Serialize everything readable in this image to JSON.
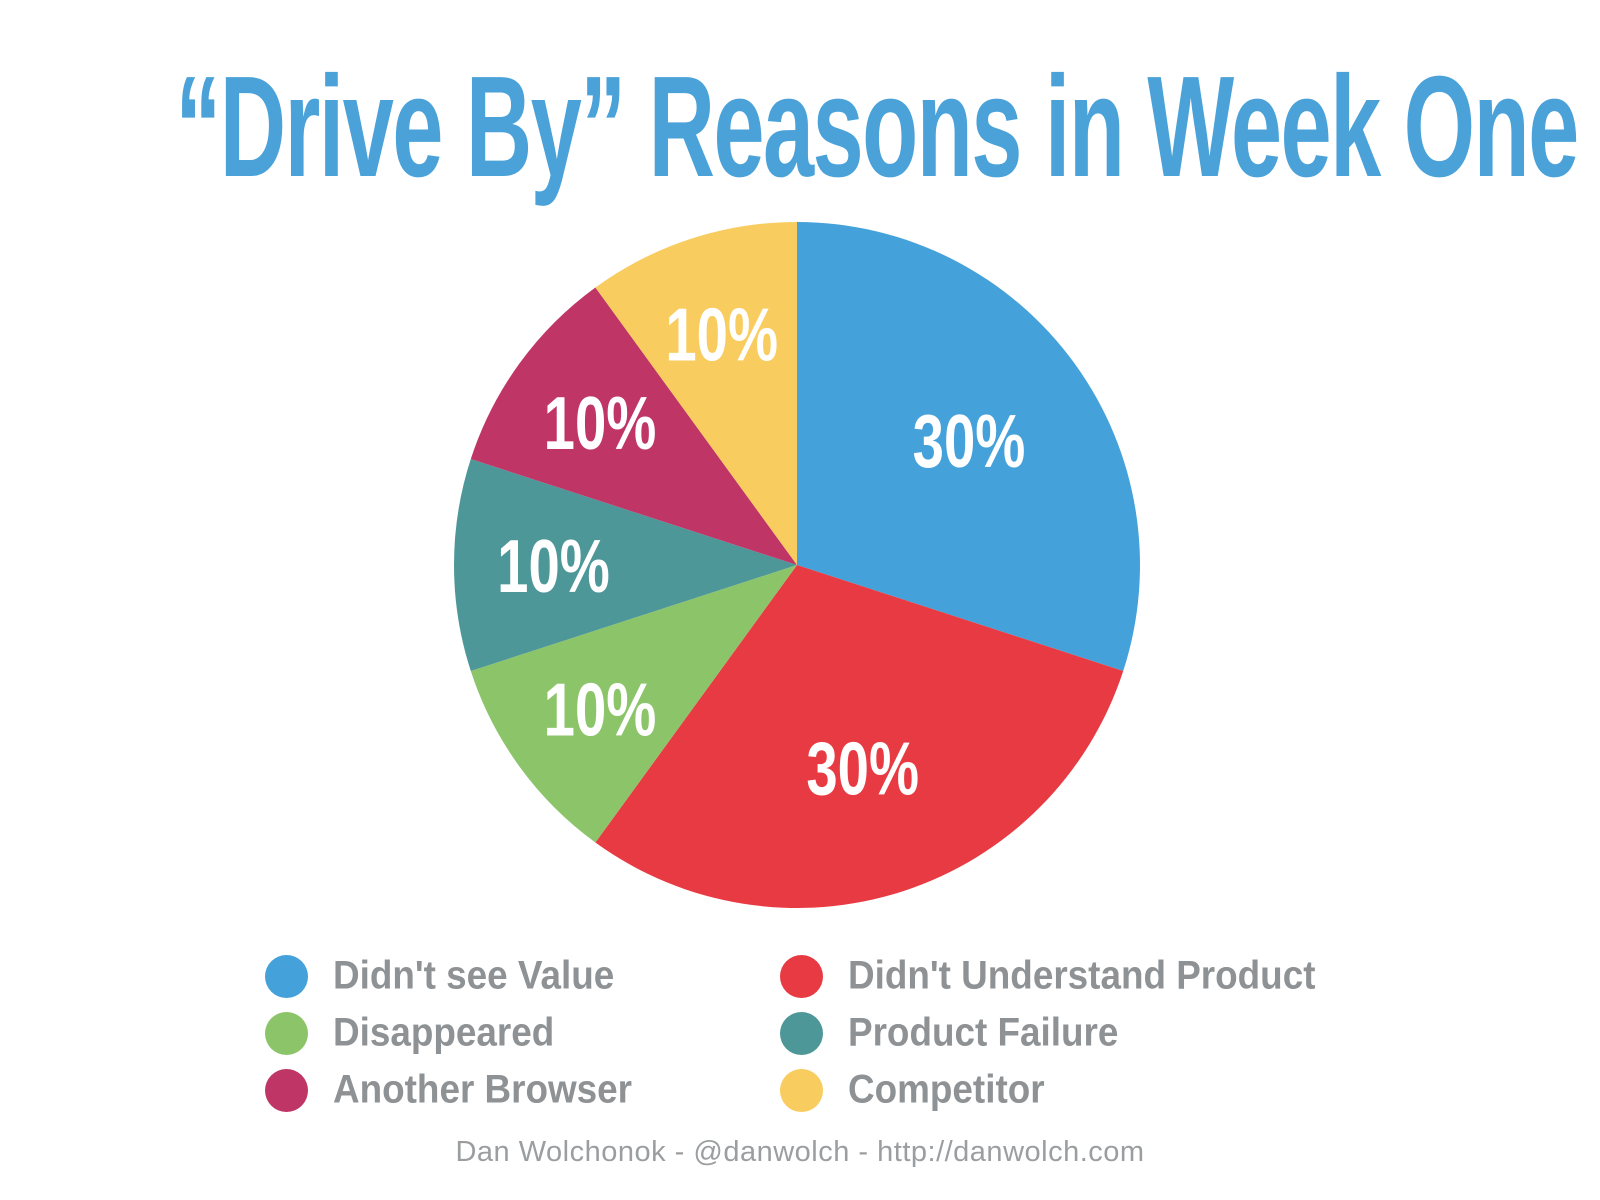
{
  "title": "“Drive By” Reasons in Week One",
  "footer": "Dan Wolchonok - @danwolch - http://danwolch.com",
  "accent_color": "#4AA2D9",
  "legend_text_color": "#8E9294",
  "footer_text_color": "#9B9EA0",
  "chart_data": {
    "type": "pie",
    "title": "“Drive By” Reasons in Week One",
    "start_angle_deg": 0,
    "direction": "clockwise",
    "legend_position": "bottom",
    "slices": [
      {
        "label": "Didn't see Value",
        "value": 30,
        "display": "30%",
        "color": "#45A1D9"
      },
      {
        "label": "Didn't Understand Product",
        "value": 30,
        "display": "30%",
        "color": "#E83A42"
      },
      {
        "label": "Disappeared",
        "value": 10,
        "display": "10%",
        "color": "#8CC46A"
      },
      {
        "label": "Product Failure",
        "value": 10,
        "display": "10%",
        "color": "#4E9799"
      },
      {
        "label": "Another Browser",
        "value": 10,
        "display": "10%",
        "color": "#BF3566"
      },
      {
        "label": "Competitor",
        "value": 10,
        "display": "10%",
        "color": "#F8CC5E"
      }
    ],
    "legend_layout_columns": [
      [
        0,
        2,
        4
      ],
      [
        1,
        3,
        5
      ]
    ]
  }
}
